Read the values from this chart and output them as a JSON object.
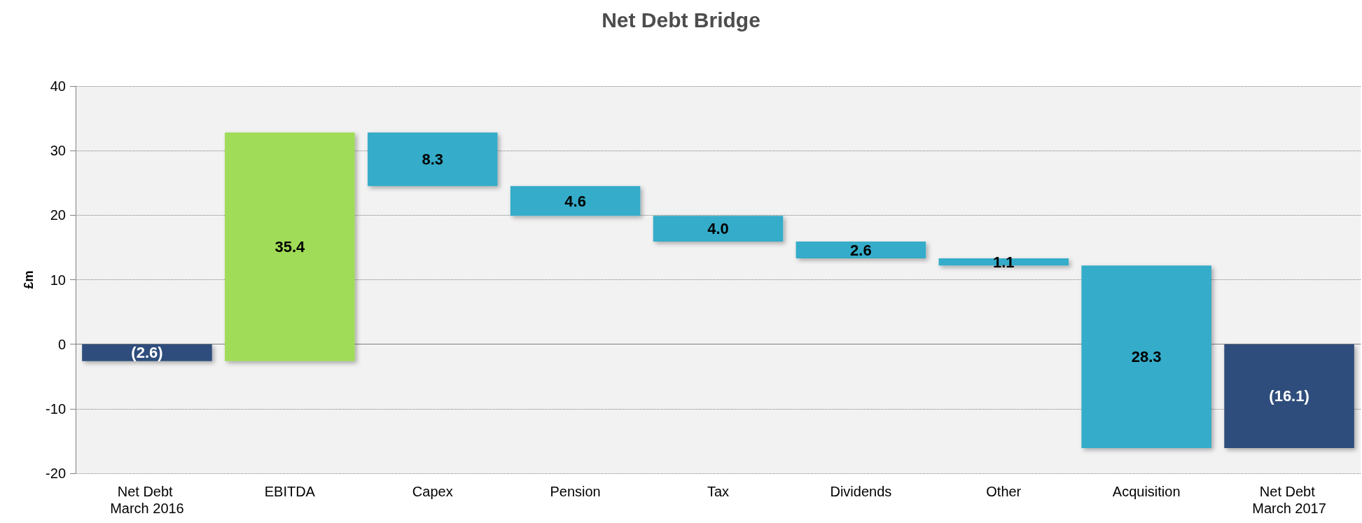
{
  "chart_data": {
    "type": "bar",
    "title": "Net Debt Bridge",
    "ylabel": "£m",
    "categories": [
      "Net Debt March 2016",
      "EBITDA",
      "Capex",
      "Pension",
      "Tax",
      "Dividends",
      "Other",
      "Acquisition",
      "Net Debt March 2017"
    ],
    "values": [
      -2.6,
      35.4,
      -8.3,
      -4.6,
      -4.0,
      -2.6,
      -1.1,
      -28.3,
      -16.1
    ],
    "base": [
      0,
      -2.6,
      32.8,
      24.5,
      19.9,
      15.9,
      13.3,
      12.2,
      0
    ],
    "colors": [
      "#2e4d7b",
      "#a0dc58",
      "#35acc9",
      "#35acc9",
      "#35acc9",
      "#35acc9",
      "#35acc9",
      "#35acc9",
      "#2e4d7b"
    ],
    "value_labels": [
      "(2.6)",
      "35.4",
      "8.3",
      "4.6",
      "4.0",
      "2.6",
      "1.1",
      "28.3",
      "(16.1)"
    ],
    "ylim": [
      -20,
      40
    ],
    "yticks": [
      -20,
      -10,
      0,
      10,
      20,
      30,
      40
    ],
    "grid": "y"
  }
}
